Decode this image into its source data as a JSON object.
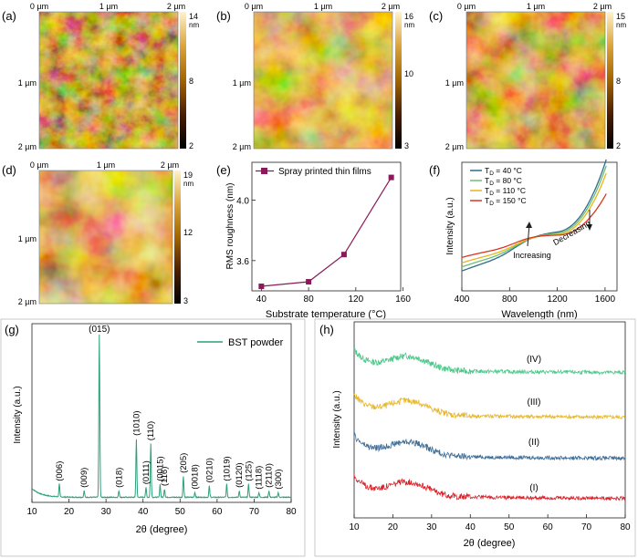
{
  "panel_labels": {
    "a": "(a)",
    "b": "(b)",
    "c": "(c)",
    "d": "(d)",
    "e": "(e)",
    "f": "(f)",
    "g": "(g)",
    "h": "(h)"
  },
  "afm": {
    "axis_top": [
      "0 µm",
      "1 µm",
      "2 µm"
    ],
    "axis_left": [
      "1 µm",
      "2 µm"
    ],
    "unit": "nm",
    "maps": [
      {
        "id": "a",
        "scale_max": "14",
        "scale_mid": "8",
        "scale_min": "2"
      },
      {
        "id": "b",
        "scale_max": "16",
        "scale_mid": "10",
        "scale_min": "3"
      },
      {
        "id": "c",
        "scale_max": "15",
        "scale_mid": "8",
        "scale_min": "2"
      },
      {
        "id": "d",
        "scale_max": "19",
        "scale_mid": "12",
        "scale_min": "3"
      }
    ]
  },
  "chart_data": [
    {
      "id": "e",
      "type": "line",
      "legend": "Spray printed thin films",
      "xlabel": "Substrate temperature (°C)",
      "ylabel": "RMS roughness (nm)",
      "x": [
        40,
        80,
        110,
        150
      ],
      "y": [
        3.43,
        3.46,
        3.64,
        4.15
      ],
      "xlim": [
        32,
        158
      ],
      "ylim": [
        3.4,
        4.25
      ],
      "xticks": [
        "40",
        "80",
        "120",
        "160"
      ],
      "yticks": [
        "3.6",
        "4.0"
      ],
      "color": "#8b1a5a"
    },
    {
      "id": "f",
      "type": "line",
      "xlabel": "Wavelength (nm)",
      "ylabel": "Intensity (a.u.)",
      "xlim": [
        400,
        1700
      ],
      "xticks": [
        "400",
        "800",
        "1200",
        "1600"
      ],
      "series": [
        {
          "name": "T",
          "sub": "D",
          "suffix": " = 40 °C",
          "color": "#2f6b8a"
        },
        {
          "name": "T",
          "sub": "D",
          "suffix": " = 80 °C",
          "color": "#6bbf73"
        },
        {
          "name": "T",
          "sub": "D",
          "suffix": " = 110 °C",
          "color": "#e8b418"
        },
        {
          "name": "T",
          "sub": "D",
          "suffix": " = 150 °C",
          "color": "#d8351f"
        }
      ],
      "annotations": [
        "Increasing",
        "Decreasing"
      ]
    },
    {
      "id": "g",
      "type": "line",
      "legend": "BST powder",
      "xlabel": "2θ (degree)",
      "ylabel": "Intensity (a.u.)",
      "xlim": [
        10,
        80
      ],
      "xticks": [
        "10",
        "20",
        "30",
        "40",
        "50",
        "60",
        "70",
        "80"
      ],
      "color": "#2ba07a",
      "peaks": [
        {
          "x": 17.4,
          "h": 0.08,
          "label": "(006)"
        },
        {
          "x": 24.1,
          "h": 0.04,
          "label": "(009)"
        },
        {
          "x": 28.2,
          "h": 1.0,
          "label": "(015)"
        },
        {
          "x": 33.5,
          "h": 0.04,
          "label": "(018)"
        },
        {
          "x": 38.2,
          "h": 0.36,
          "label": "(1010)"
        },
        {
          "x": 40.8,
          "h": 0.06,
          "label": "(0111)"
        },
        {
          "x": 42.1,
          "h": 0.33,
          "label": "(110)"
        },
        {
          "x": 44.6,
          "h": 0.08,
          "label": "(0015)"
        },
        {
          "x": 45.8,
          "h": 0.05,
          "label": "(116)"
        },
        {
          "x": 50.9,
          "h": 0.13,
          "label": "(205)"
        },
        {
          "x": 54.0,
          "h": 0.03,
          "label": "(0018)"
        },
        {
          "x": 57.9,
          "h": 0.07,
          "label": "(0210)"
        },
        {
          "x": 62.6,
          "h": 0.08,
          "label": "(1019)"
        },
        {
          "x": 66.0,
          "h": 0.04,
          "label": "(0120)"
        },
        {
          "x": 68.5,
          "h": 0.08,
          "label": "(125)"
        },
        {
          "x": 71.3,
          "h": 0.03,
          "label": "(1118)"
        },
        {
          "x": 74.0,
          "h": 0.04,
          "label": "(2110)"
        },
        {
          "x": 76.5,
          "h": 0.03,
          "label": "(300)"
        }
      ]
    },
    {
      "id": "h",
      "type": "line",
      "xlabel": "2θ (degree)",
      "ylabel": "Intensity (a.u.)",
      "xlim": [
        10,
        80
      ],
      "xticks": [
        "10",
        "20",
        "30",
        "40",
        "50",
        "60",
        "70",
        "80"
      ],
      "series": [
        {
          "name": "(IV)",
          "color": "#4cc98a"
        },
        {
          "name": "(III)",
          "color": "#e8b82a"
        },
        {
          "name": "(II)",
          "color": "#3f6e96"
        },
        {
          "name": "(I)",
          "color": "#d8222a"
        }
      ]
    }
  ]
}
